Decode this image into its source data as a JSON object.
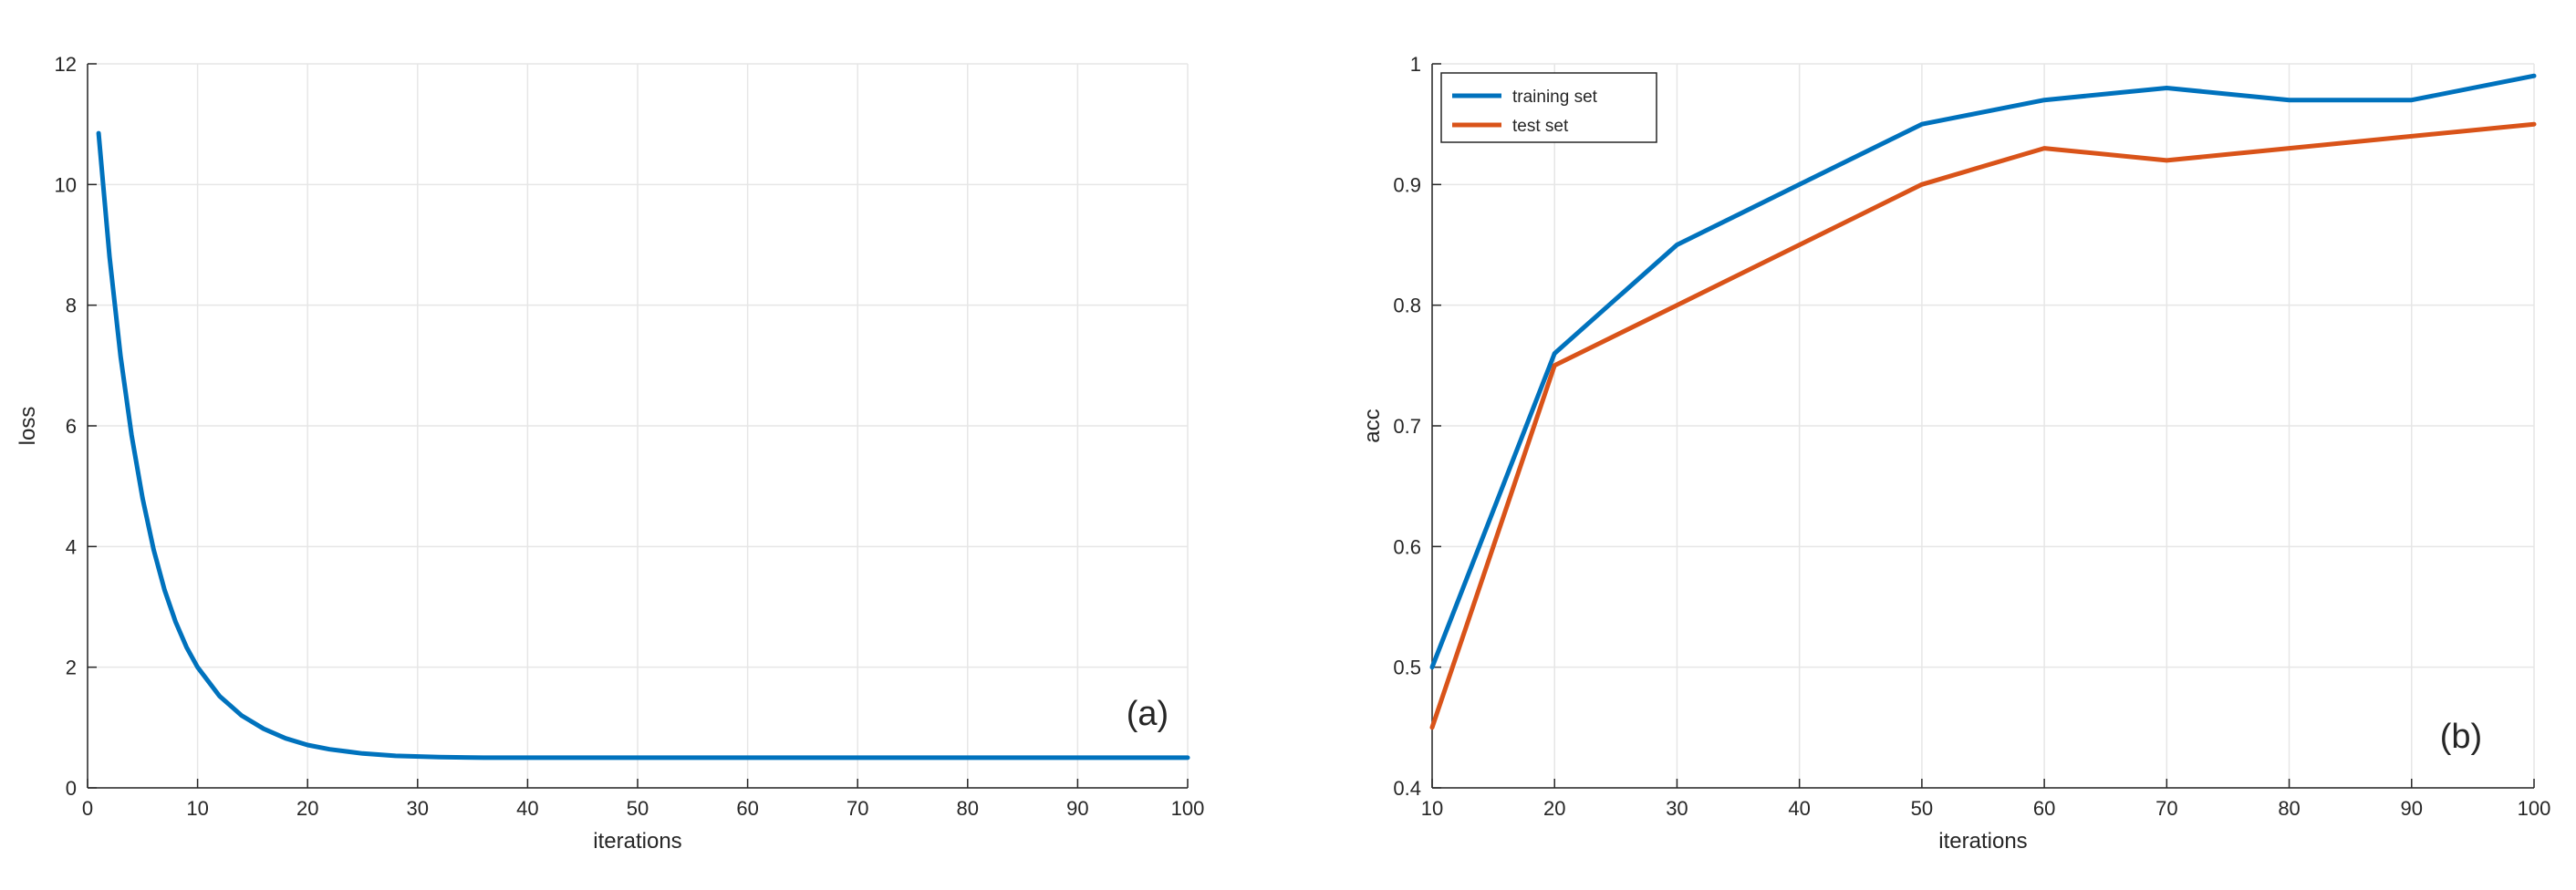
{
  "chart_data": [
    {
      "type": "line",
      "panel_label": "(a)",
      "xlabel": "iterations",
      "ylabel": "loss",
      "xlim": [
        0,
        100
      ],
      "ylim": [
        0,
        12
      ],
      "xticks": [
        "0",
        "10",
        "20",
        "30",
        "40",
        "50",
        "60",
        "70",
        "80",
        "90",
        "100"
      ],
      "yticks": [
        "0",
        "2",
        "4",
        "6",
        "8",
        "10",
        "12"
      ],
      "grid": true,
      "legend": null,
      "colors": [
        "#0072BD"
      ],
      "series": [
        {
          "x": [
            1,
            2,
            3,
            4,
            5,
            6,
            7,
            8,
            9,
            10,
            12,
            14,
            16,
            18,
            20,
            22,
            25,
            28,
            32,
            36,
            40,
            50,
            60,
            70,
            80,
            90,
            100
          ],
          "values": [
            10.85,
            8.8,
            7.15,
            5.85,
            4.8,
            3.95,
            3.28,
            2.75,
            2.33,
            2.0,
            1.52,
            1.2,
            0.98,
            0.82,
            0.71,
            0.64,
            0.57,
            0.53,
            0.51,
            0.5,
            0.5,
            0.5,
            0.5,
            0.5,
            0.5,
            0.5,
            0.5
          ]
        }
      ]
    },
    {
      "type": "line",
      "panel_label": "(b)",
      "xlabel": "iterations",
      "ylabel": "acc",
      "xlim": [
        10,
        100
      ],
      "ylim": [
        0.4,
        1
      ],
      "xticks": [
        "10",
        "20",
        "30",
        "40",
        "50",
        "60",
        "70",
        "80",
        "90",
        "100"
      ],
      "yticks": [
        "0.4",
        "0.5",
        "0.6",
        "0.7",
        "0.8",
        "0.9",
        "1"
      ],
      "grid": true,
      "legend": "top-left",
      "categories": [
        10,
        20,
        30,
        40,
        50,
        60,
        70,
        80,
        90,
        100
      ],
      "series": [
        {
          "name": "training set",
          "color": "#0072BD",
          "values": [
            0.5,
            0.76,
            0.85,
            0.9,
            0.95,
            0.97,
            0.98,
            0.97,
            0.97,
            0.99
          ]
        },
        {
          "name": "test set",
          "color": "#D95319",
          "values": [
            0.45,
            0.75,
            0.8,
            0.85,
            0.9,
            0.93,
            0.92,
            0.93,
            0.94,
            0.95
          ]
        }
      ]
    }
  ]
}
